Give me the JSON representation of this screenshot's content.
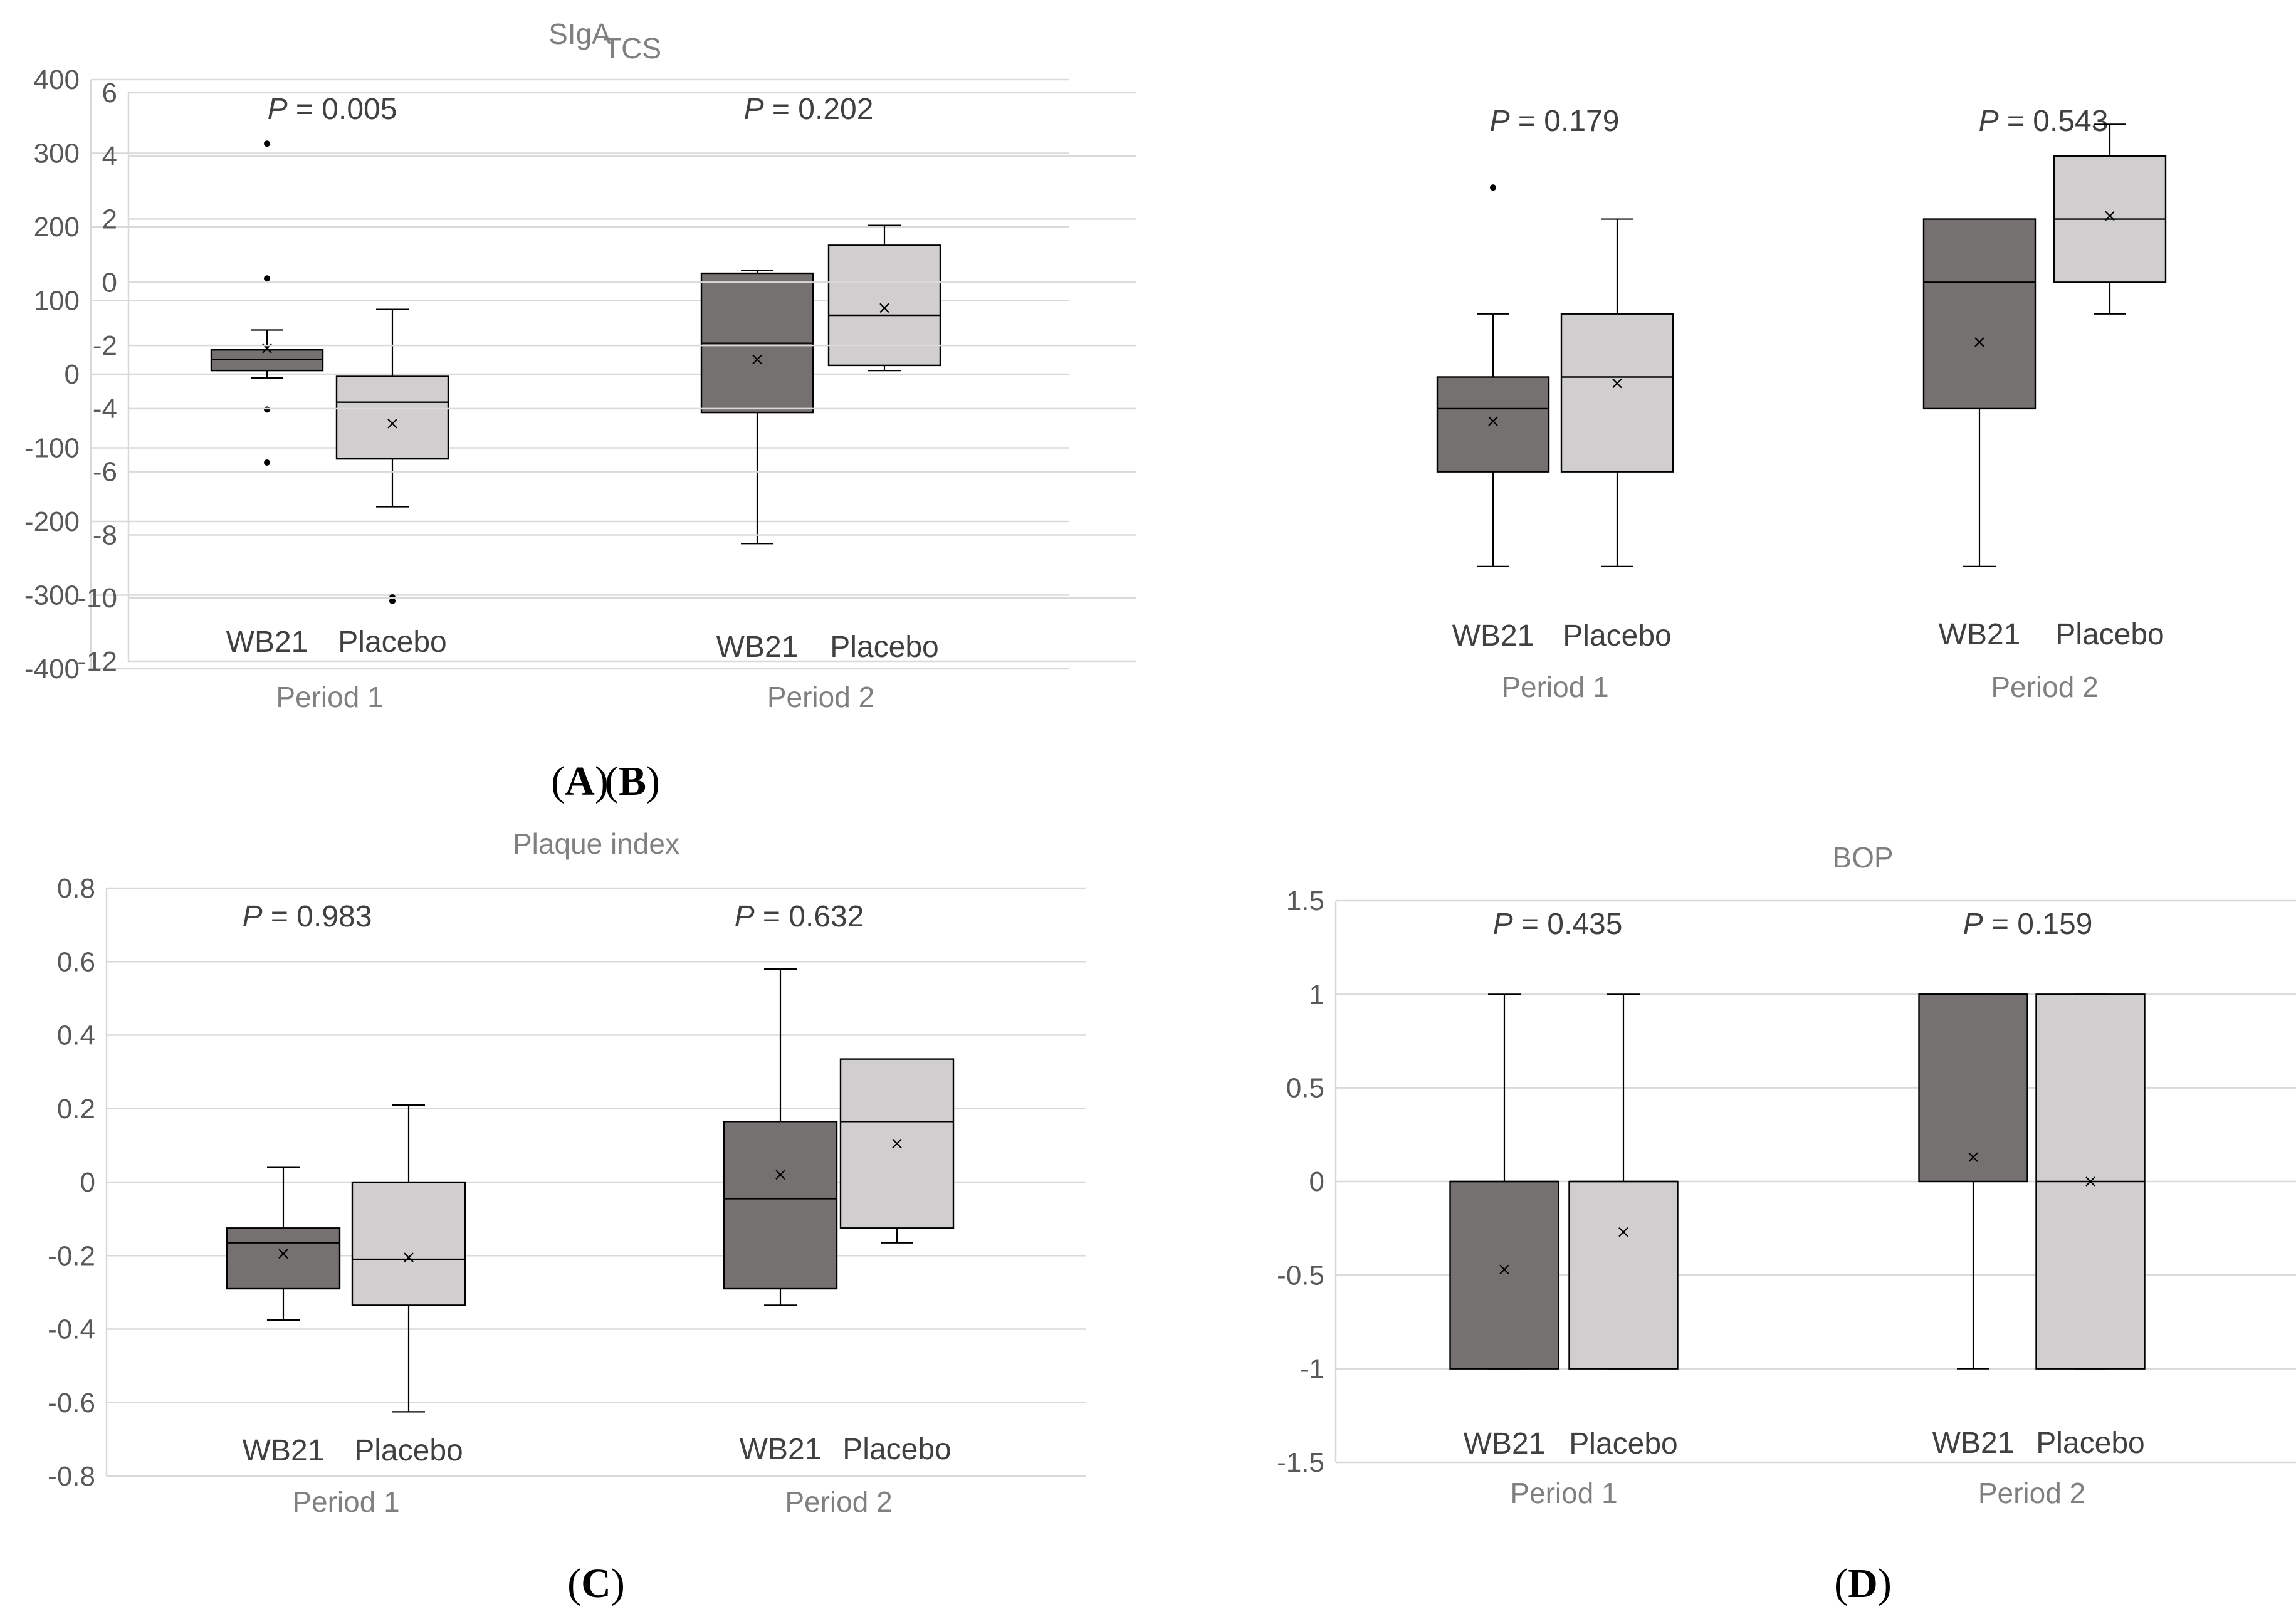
{
  "figure": {
    "panels": [
      {
        "letter": "A"
      },
      {
        "letter": "B"
      },
      {
        "letter": "C"
      },
      {
        "letter": "D"
      }
    ]
  },
  "chart_data": [
    {
      "type": "box",
      "title": "SIgA",
      "ylim": [
        -400,
        400
      ],
      "yticks": [
        400,
        300,
        200,
        100,
        0,
        -100,
        -200,
        -300,
        -400
      ],
      "ytick_labels": [
        "400",
        "300",
        "200",
        "100",
        "0",
        "-100",
        "-200",
        "-300",
        "-400"
      ],
      "groups": [
        {
          "period": "Period 1",
          "p_label": "P",
          "p_value": "= 0.005",
          "boxes": [
            {
              "name": "WB21",
              "color": "#767171",
              "min": -5,
              "q1": 5,
              "median": 20,
              "q3": 33,
              "max": 60,
              "mean": 35,
              "outliers": [
                313,
                130,
                -48,
                -120
              ]
            },
            {
              "name": "Placebo",
              "color": "#d0cece",
              "min": -180,
              "q1": -115,
              "median": -38,
              "q3": -3,
              "max": 88,
              "mean": -67,
              "outliers": [
                -303,
                -308
              ]
            }
          ]
        },
        {
          "period": "Period 2",
          "p_label": "P",
          "p_value": "= 0.202",
          "boxes": [
            {
              "name": "WB21",
              "color": "#767171",
              "min": -230,
              "q1": -52,
              "median": 42,
              "q3": 137,
              "max": 141,
              "mean": 20,
              "outliers": []
            },
            {
              "name": "Placebo",
              "color": "#d0cece",
              "min": 5,
              "q1": 12,
              "median": 80,
              "q3": 175,
              "max": 202,
              "mean": 90,
              "outliers": []
            }
          ]
        }
      ]
    },
    {
      "type": "box",
      "title": "TCS",
      "ylim": [
        -12,
        6
      ],
      "yticks": [
        6,
        4,
        2,
        0,
        -2,
        -4,
        -6,
        -8,
        -10,
        -12
      ],
      "ytick_labels": [
        "6",
        "4",
        "2",
        "0",
        "-2",
        "-4",
        "-6",
        "-8",
        "-10",
        "-12"
      ],
      "groups": [
        {
          "period": "Period 1",
          "p_label": "P",
          "p_value": "= 0.179",
          "boxes": [
            {
              "name": "WB21",
              "color": "#767171",
              "min": -9,
              "q1": -6,
              "median": -4,
              "q3": -3,
              "max": -1,
              "mean": -4.4,
              "outliers": [
                3
              ]
            },
            {
              "name": "Placebo",
              "color": "#d0cece",
              "min": -9,
              "q1": -6,
              "median": -3,
              "q3": -1,
              "max": 2,
              "mean": -3.2,
              "outliers": []
            }
          ]
        },
        {
          "period": "Period 2",
          "p_label": "P",
          "p_value": "= 0.543",
          "boxes": [
            {
              "name": "WB21",
              "color": "#767171",
              "min": -9,
              "q1": -4,
              "median": 0,
              "q3": 2,
              "max": 2,
              "mean": -1.9,
              "outliers": []
            },
            {
              "name": "Placebo",
              "color": "#d0cece",
              "min": -1,
              "q1": 0,
              "median": 2,
              "q3": 4,
              "max": 5,
              "mean": 2.1,
              "outliers": []
            }
          ]
        }
      ]
    },
    {
      "type": "box",
      "title": "Plaque index",
      "ylim": [
        -0.8,
        0.8
      ],
      "yticks": [
        0.8,
        0.6,
        0.4,
        0.2,
        0,
        -0.2,
        -0.4,
        -0.6,
        -0.8
      ],
      "ytick_labels": [
        "0.8",
        "0.6",
        "0.4",
        "0.2",
        "0",
        "-0.2",
        "-0.4",
        "-0.6",
        "-0.8"
      ],
      "groups": [
        {
          "period": "Period 1",
          "p_label": "P",
          "p_value": "= 0.983",
          "boxes": [
            {
              "name": "WB21",
              "color": "#767171",
              "min": -0.375,
              "q1": -0.29,
              "median": -0.165,
              "q3": -0.125,
              "max": 0.04,
              "mean": -0.195,
              "outliers": []
            },
            {
              "name": "Placebo",
              "color": "#d0cece",
              "min": -0.625,
              "q1": -0.335,
              "median": -0.21,
              "q3": 0,
              "max": 0.21,
              "mean": -0.205,
              "outliers": []
            }
          ]
        },
        {
          "period": "Period 2",
          "p_label": "P",
          "p_value": "= 0.632",
          "boxes": [
            {
              "name": "WB21",
              "color": "#767171",
              "min": -0.335,
              "q1": -0.29,
              "median": -0.045,
              "q3": 0.165,
              "max": 0.58,
              "mean": 0.02,
              "outliers": []
            },
            {
              "name": "Placebo",
              "color": "#d0cece",
              "min": -0.165,
              "q1": -0.125,
              "median": 0.165,
              "q3": 0.335,
              "max": 0.335,
              "mean": 0.105,
              "outliers": []
            }
          ]
        }
      ]
    },
    {
      "type": "box",
      "title": "BOP",
      "ylim": [
        -1.5,
        1.5
      ],
      "yticks": [
        1.5,
        1,
        0.5,
        0,
        -0.5,
        -1,
        -1.5
      ],
      "ytick_labels": [
        "1.5",
        "1",
        "0.5",
        "0",
        "-0.5",
        "-1",
        "-1.5"
      ],
      "groups": [
        {
          "period": "Period 1",
          "p_label": "P",
          "p_value": "= 0.435",
          "boxes": [
            {
              "name": "WB21",
              "color": "#767171",
              "min": -1,
              "q1": -1,
              "median": 0,
              "q3": 0,
              "max": 1,
              "mean": -0.47,
              "outliers": []
            },
            {
              "name": "Placebo",
              "color": "#d0cece",
              "min": -1,
              "q1": -1,
              "median": 0,
              "q3": 0,
              "max": 1,
              "mean": -0.27,
              "outliers": []
            }
          ]
        },
        {
          "period": "Period 2",
          "p_label": "P",
          "p_value": "= 0.159",
          "boxes": [
            {
              "name": "WB21",
              "color": "#767171",
              "min": -1,
              "q1": 0,
              "median": 1,
              "q3": 1,
              "max": 1,
              "mean": 0.13,
              "outliers": []
            },
            {
              "name": "Placebo",
              "color": "#d0cece",
              "min": -1,
              "q1": -1,
              "median": 0,
              "q3": 1,
              "max": 1,
              "mean": 0,
              "outliers": []
            }
          ]
        }
      ]
    }
  ]
}
